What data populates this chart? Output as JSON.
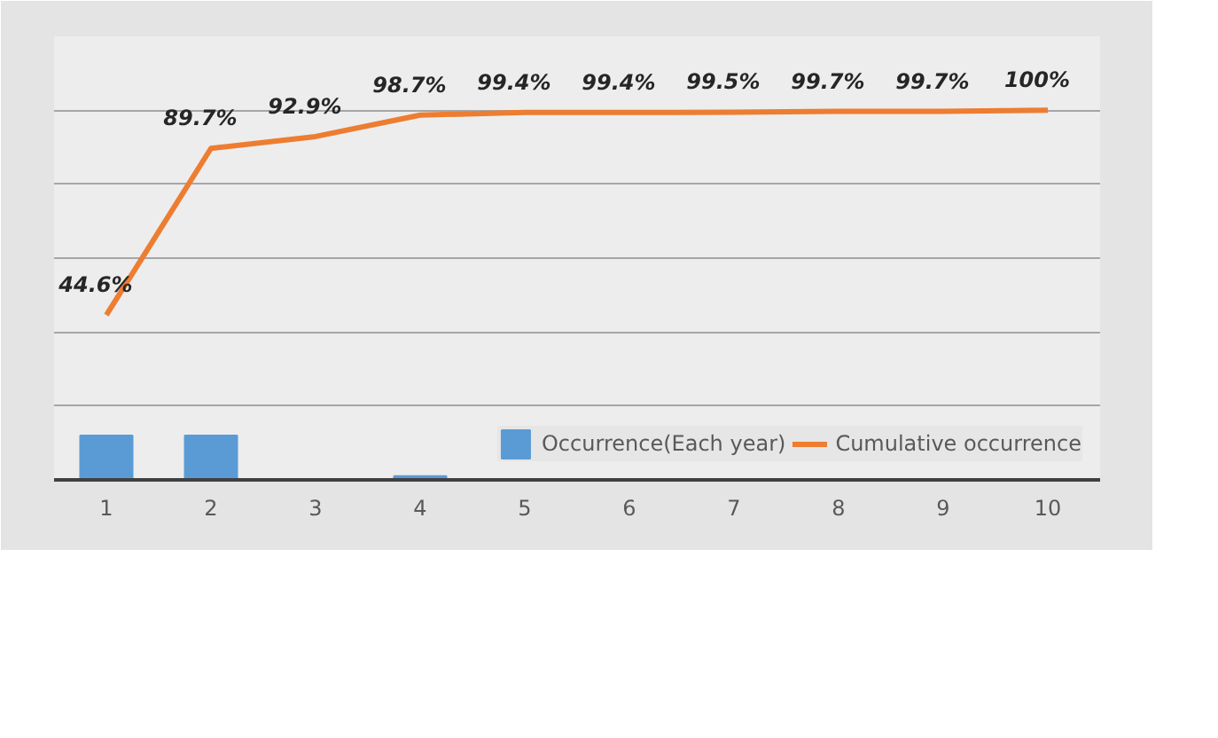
{
  "chart_data": {
    "type": "bar",
    "categories": [
      "1",
      "2",
      "3",
      "4",
      "5",
      "6",
      "7",
      "8",
      "9",
      "10"
    ],
    "series": [
      {
        "name": "Occurrence(Each year)",
        "color": "#5b9bd5",
        "values": [
          12,
          12,
          0,
          1,
          0,
          0,
          0,
          0,
          0,
          0
        ]
      },
      {
        "name": "Cumulative occurrence",
        "type": "line",
        "color": "#ed7d31",
        "values": [
          44.6,
          89.7,
          92.9,
          98.7,
          99.4,
          99.4,
          99.5,
          99.7,
          99.7,
          100
        ],
        "value_labels": [
          "44.6%",
          "89.7%",
          "92.9%",
          "98.7%",
          "99.4%",
          "99.4%",
          "99.5%",
          "99.7%",
          "99.7%",
          "100%"
        ]
      }
    ],
    "ylim": [
      0,
      120
    ],
    "yticks": [
      {
        "value": 0,
        "label": null
      },
      {
        "value": 20,
        "label": null
      },
      {
        "value": 40,
        "label": null
      },
      {
        "value": 60,
        "label": null
      },
      {
        "value": 80,
        "label": null
      },
      {
        "value": 100,
        "label": null
      },
      {
        "value": 120,
        "label": null
      }
    ],
    "tick_labels": "x",
    "grid": "y",
    "legend": "bottom right",
    "marker": "none",
    "line_style": "solid"
  }
}
